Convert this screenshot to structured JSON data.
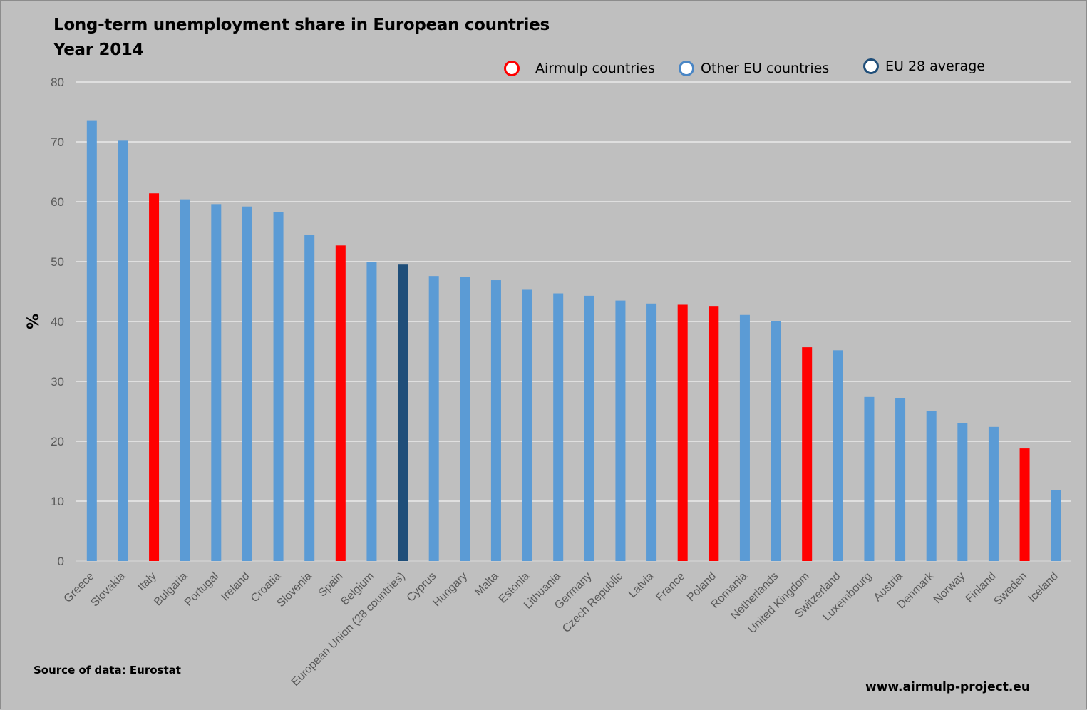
{
  "colors": {
    "background": "#bfbfbf",
    "gridline": "#ffffff",
    "airmulp": "#ff0000",
    "other": "#5b9bd5",
    "eu_average": "#1f4e79"
  },
  "footer": {
    "source": "Source of data: Eurostat",
    "website": "www.airmulp-project.eu"
  },
  "chart_data": {
    "type": "bar",
    "title": "Long-term unemployment share in European countries",
    "subtitle": "Year 2014",
    "xlabel": "",
    "ylabel": "%",
    "ylim": [
      0,
      80
    ],
    "yticks": [
      0,
      10,
      20,
      30,
      40,
      50,
      60,
      70,
      80
    ],
    "grid": true,
    "legend_position": "top",
    "legend": [
      {
        "label": "Airmulp countries",
        "group": "airmulp"
      },
      {
        "label": "Other EU countries",
        "group": "other"
      },
      {
        "label": "EU 28 average",
        "group": "eu_average"
      }
    ],
    "categories": [
      "Greece",
      "Slovakia",
      "Italy",
      "Bulgaria",
      "Portugal",
      "Ireland",
      "Croatia",
      "Slovenia",
      "Spain",
      "Belgium",
      "European Union (28 countries)",
      "Cyprus",
      "Hungary",
      "Malta",
      "Estonia",
      "Lithuania",
      "Germany",
      "Czech Republic",
      "Latvia",
      "France",
      "Poland",
      "Romania",
      "Netherlands",
      "United Kingdom",
      "Switzerland",
      "Luxembourg",
      "Austria",
      "Denmark",
      "Norway",
      "Finland",
      "Sweden",
      "Iceland"
    ],
    "values": [
      73.5,
      70.2,
      61.4,
      60.4,
      59.6,
      59.2,
      58.3,
      54.5,
      52.7,
      49.9,
      49.5,
      47.6,
      47.5,
      46.9,
      45.3,
      44.7,
      44.3,
      43.5,
      43.0,
      42.8,
      42.6,
      41.1,
      40.0,
      35.7,
      35.2,
      27.4,
      27.2,
      25.1,
      23.0,
      22.4,
      18.8,
      11.9
    ],
    "groups": [
      "other",
      "other",
      "airmulp",
      "other",
      "other",
      "other",
      "other",
      "other",
      "airmulp",
      "other",
      "eu_average",
      "other",
      "other",
      "other",
      "other",
      "other",
      "other",
      "other",
      "other",
      "airmulp",
      "airmulp",
      "other",
      "other",
      "airmulp",
      "other",
      "other",
      "other",
      "other",
      "other",
      "other",
      "airmulp",
      "other"
    ]
  }
}
